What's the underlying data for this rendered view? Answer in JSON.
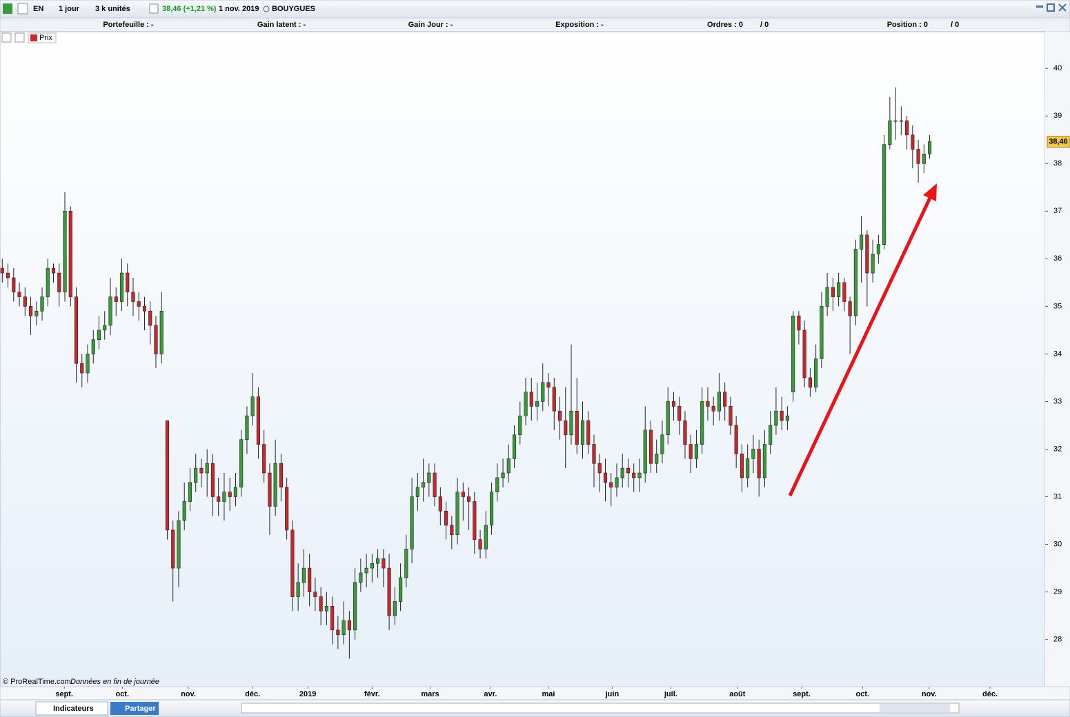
{
  "toolbar": {
    "language": "EN",
    "period": "1 jour",
    "units": "3 k unités",
    "quote": "38,46 (+1,21 %)",
    "date": "1 nov. 2019",
    "instrument": "BOUYGUES"
  },
  "info_bar": {
    "portfolio": "Portefeuille : -",
    "unrealized": "Gain latent : -",
    "day_gain": "Gain Jour : -",
    "exposure": "Exposition : -",
    "orders": "Ordres : 0",
    "orders_total": "/ 0",
    "position": "Position : 0",
    "position_total": "/ 0"
  },
  "footer": {
    "copyright": "© ProRealTime.com",
    "note": "Données en fin de journée"
  },
  "bottom_toolbar": {
    "indicators": "Indicateurs",
    "share": "Partager"
  },
  "chart_data": {
    "type": "candlestick",
    "categories": [
      null,
      null,
      null,
      null,
      null,
      null,
      null,
      null,
      null,
      null,
      null,
      null,
      null,
      null,
      null,
      null,
      null,
      null,
      null,
      null,
      null,
      null,
      null,
      null,
      null,
      null,
      null,
      null,
      null,
      null,
      null,
      null,
      null,
      null,
      null,
      null,
      null,
      null,
      null,
      null,
      null,
      null,
      null,
      null,
      null,
      null,
      null,
      null,
      null,
      null,
      null,
      null,
      null,
      null,
      null,
      null,
      null,
      null,
      null,
      null,
      null,
      null,
      null,
      null,
      null,
      null,
      null,
      null,
      null,
      null,
      null,
      null,
      null,
      null,
      null,
      null,
      null,
      null,
      null,
      null,
      null,
      null,
      null,
      null,
      null,
      null,
      null,
      null,
      null,
      null,
      null,
      null,
      null,
      null,
      null,
      null,
      null,
      null,
      null,
      null,
      null,
      null,
      null,
      null,
      null,
      null,
      null,
      null,
      null,
      null,
      null,
      null,
      null,
      null,
      null,
      null,
      null,
      null,
      null,
      null,
      null,
      null,
      null,
      null,
      null,
      null,
      null,
      null,
      null,
      null,
      null,
      null,
      null,
      null,
      null,
      null,
      null,
      null,
      null,
      null,
      null,
      null,
      null,
      null,
      null,
      null,
      null,
      null,
      null,
      null,
      null,
      null,
      null,
      null,
      null,
      null,
      null,
      null,
      null,
      null,
      null,
      null,
      null,
      null
    ],
    "series": [
      {
        "name": "Prix",
        "up_color": "#3a9a3a",
        "down_color": "#c8282c",
        "open": [
          35.8,
          35.7,
          35.6,
          35.3,
          35.2,
          35.0,
          34.8,
          34.9,
          35.2,
          35.8,
          35.7,
          35.3,
          37.0,
          35.2,
          33.8,
          33.6,
          34.0,
          34.3,
          34.5,
          34.6,
          35.2,
          35.1,
          35.7,
          35.3,
          35.1,
          35.0,
          34.9,
          34.6,
          34.0,
          32.6,
          30.3,
          29.5,
          30.5,
          30.9,
          31.3,
          31.6,
          31.5,
          31.7,
          31.0,
          30.9,
          31.1,
          31.0,
          31.2,
          32.2,
          32.7,
          33.1,
          32.1,
          31.5,
          30.8,
          31.7,
          31.2,
          30.3,
          28.9,
          29.2,
          29.5,
          29.0,
          28.9,
          28.6,
          28.7,
          28.2,
          28.1,
          28.4,
          28.2,
          29.2,
          29.4,
          29.5,
          29.6,
          29.7,
          29.5,
          28.5,
          28.8,
          29.3,
          29.9,
          31.0,
          31.2,
          31.3,
          31.5,
          31.0,
          30.7,
          30.4,
          30.2,
          31.1,
          31.0,
          30.9,
          30.1,
          29.9,
          30.4,
          31.1,
          31.4,
          31.5,
          31.8,
          32.3,
          32.7,
          33.2,
          32.9,
          33.0,
          33.4,
          33.3,
          32.8,
          32.6,
          32.3,
          32.8,
          32.1,
          32.6,
          32.1,
          31.7,
          31.5,
          31.3,
          31.2,
          31.4,
          31.6,
          31.5,
          31.4,
          31.5,
          32.4,
          31.7,
          31.9,
          32.3,
          33.0,
          32.9,
          32.6,
          32.1,
          31.8,
          32.1,
          33.0,
          32.9,
          32.8,
          33.2,
          32.9,
          32.5,
          31.9,
          31.4,
          31.8,
          32.0,
          31.4,
          32.1,
          32.5,
          32.8,
          32.6,
          33.2,
          34.8,
          34.5,
          33.5,
          33.3,
          33.9,
          35.0,
          35.4,
          35.2,
          35.5,
          35.1,
          34.8,
          36.2,
          36.5,
          35.7,
          36.1,
          36.3,
          38.4,
          38.9,
          38.9,
          38.9,
          38.6,
          38.3,
          38.0,
          38.2
        ],
        "high": [
          36.0,
          35.9,
          35.8,
          35.5,
          35.4,
          35.2,
          35.1,
          35.4,
          36.0,
          35.9,
          35.9,
          37.4,
          37.1,
          35.4,
          34.0,
          34.2,
          34.5,
          34.8,
          34.9,
          35.6,
          35.4,
          36.0,
          35.9,
          35.6,
          35.3,
          35.2,
          35.1,
          34.8,
          35.3,
          32.6,
          30.5,
          30.7,
          31.3,
          31.6,
          31.9,
          31.8,
          32.0,
          31.9,
          31.4,
          31.5,
          31.4,
          31.5,
          32.4,
          32.9,
          33.6,
          33.3,
          32.4,
          31.7,
          32.2,
          31.9,
          31.4,
          30.5,
          29.6,
          29.9,
          29.8,
          29.3,
          29.1,
          29.0,
          28.9,
          28.5,
          28.8,
          28.6,
          29.5,
          29.7,
          29.8,
          29.8,
          29.9,
          29.9,
          29.8,
          29.1,
          29.6,
          30.2,
          31.4,
          31.5,
          31.8,
          31.7,
          31.7,
          31.2,
          30.9,
          30.6,
          31.4,
          31.3,
          31.2,
          31.1,
          30.3,
          30.7,
          31.3,
          31.7,
          31.8,
          32.1,
          32.5,
          33.0,
          33.5,
          33.5,
          33.4,
          33.8,
          33.6,
          33.5,
          33.1,
          33.3,
          34.2,
          33.5,
          33.0,
          32.8,
          32.3,
          31.9,
          31.8,
          31.5,
          31.7,
          31.9,
          31.8,
          31.7,
          31.8,
          32.9,
          32.6,
          32.2,
          32.6,
          33.3,
          33.2,
          33.1,
          32.8,
          32.3,
          32.4,
          33.3,
          33.3,
          33.1,
          33.6,
          33.4,
          33.1,
          32.7,
          32.1,
          32.1,
          32.3,
          32.2,
          32.4,
          32.8,
          33.3,
          33.1,
          32.9,
          34.9,
          34.9,
          34.7,
          33.7,
          34.2,
          35.3,
          35.7,
          35.6,
          35.7,
          35.6,
          35.2,
          36.4,
          36.9,
          36.6,
          36.4,
          36.5,
          38.6,
          39.4,
          39.6,
          39.2,
          39.0,
          38.8,
          38.5,
          38.4,
          38.6
        ],
        "low": [
          35.5,
          35.4,
          35.1,
          35.0,
          34.8,
          34.4,
          34.6,
          34.7,
          35.0,
          35.5,
          35.0,
          35.1,
          35.0,
          33.4,
          33.3,
          33.4,
          33.8,
          34.1,
          34.3,
          34.4,
          34.8,
          34.9,
          35.0,
          34.8,
          34.7,
          34.5,
          34.2,
          33.7,
          33.8,
          30.1,
          28.8,
          29.1,
          30.3,
          30.7,
          31.1,
          31.2,
          31.0,
          30.6,
          30.6,
          30.5,
          30.7,
          30.8,
          31.0,
          31.9,
          32.5,
          31.8,
          31.3,
          30.2,
          30.6,
          30.9,
          30.1,
          28.6,
          28.6,
          28.9,
          28.7,
          28.6,
          28.3,
          28.3,
          27.9,
          27.8,
          27.9,
          27.6,
          28.0,
          29.0,
          29.1,
          29.2,
          29.3,
          29.1,
          28.2,
          28.3,
          28.6,
          29.1,
          29.6,
          30.7,
          30.9,
          31.0,
          30.8,
          30.4,
          30.1,
          29.9,
          30.0,
          30.5,
          30.3,
          29.8,
          29.7,
          29.7,
          30.2,
          30.9,
          31.2,
          31.3,
          31.6,
          32.1,
          32.5,
          32.6,
          32.6,
          32.8,
          32.9,
          32.4,
          32.2,
          31.6,
          32.1,
          31.9,
          31.8,
          31.9,
          31.2,
          31.1,
          30.9,
          30.8,
          31.0,
          31.2,
          31.2,
          31.1,
          31.1,
          31.3,
          31.5,
          31.5,
          31.7,
          32.1,
          32.6,
          32.3,
          31.8,
          31.5,
          31.6,
          31.9,
          32.6,
          32.5,
          32.6,
          32.6,
          32.3,
          31.6,
          31.1,
          31.2,
          31.5,
          31.0,
          31.2,
          31.9,
          32.3,
          32.4,
          32.4,
          33.0,
          34.2,
          33.3,
          33.1,
          33.2,
          33.7,
          34.8,
          34.9,
          35.0,
          34.9,
          34.0,
          34.6,
          35.5,
          35.0,
          35.5,
          35.9,
          36.2,
          38.3,
          38.5,
          38.6,
          38.3,
          37.9,
          37.6,
          37.8,
          38.1
        ],
        "close": [
          35.7,
          35.6,
          35.3,
          35.2,
          35.0,
          34.8,
          34.9,
          35.2,
          35.8,
          35.7,
          35.3,
          37.0,
          35.2,
          33.8,
          33.6,
          34.0,
          34.3,
          34.5,
          34.6,
          35.2,
          35.1,
          35.7,
          35.3,
          35.1,
          35.0,
          34.9,
          34.6,
          34.0,
          34.9,
          30.3,
          29.5,
          30.5,
          30.9,
          31.3,
          31.6,
          31.5,
          31.7,
          31.0,
          30.9,
          31.1,
          31.0,
          31.2,
          32.2,
          32.7,
          33.1,
          32.1,
          31.5,
          30.8,
          31.7,
          31.2,
          30.3,
          28.9,
          29.2,
          29.5,
          29.0,
          28.9,
          28.6,
          28.7,
          28.2,
          28.1,
          28.4,
          28.2,
          29.2,
          29.4,
          29.5,
          29.6,
          29.7,
          29.5,
          28.5,
          28.8,
          29.3,
          29.9,
          31.0,
          31.2,
          31.3,
          31.5,
          31.0,
          30.7,
          30.4,
          30.2,
          31.1,
          31.0,
          30.9,
          30.1,
          29.9,
          30.4,
          31.1,
          31.4,
          31.5,
          31.8,
          32.3,
          32.7,
          33.2,
          32.9,
          33.0,
          33.4,
          33.3,
          32.8,
          32.6,
          32.3,
          32.8,
          32.1,
          32.6,
          32.1,
          31.7,
          31.5,
          31.3,
          31.2,
          31.4,
          31.6,
          31.5,
          31.4,
          31.5,
          32.4,
          31.7,
          31.9,
          32.3,
          33.0,
          32.9,
          32.6,
          32.1,
          31.8,
          32.1,
          33.0,
          32.9,
          32.8,
          33.2,
          32.9,
          32.5,
          31.9,
          31.4,
          31.8,
          32.0,
          31.4,
          32.1,
          32.5,
          32.8,
          32.6,
          32.7,
          34.8,
          34.5,
          33.5,
          33.3,
          33.9,
          35.0,
          35.4,
          35.2,
          35.5,
          35.1,
          34.8,
          36.2,
          36.5,
          35.7,
          36.1,
          36.3,
          38.4,
          38.9,
          38.9,
          38.9,
          38.6,
          38.3,
          38.0,
          38.2,
          38.46
        ]
      }
    ],
    "last_price": {
      "value": 38.46,
      "label": "38,46"
    },
    "xlim": [
      -0.4,
      183.3
    ],
    "xticks": [
      {
        "value": 10.9,
        "label": "sept."
      },
      {
        "value": 21.1,
        "label": "oct."
      },
      {
        "value": 32.7,
        "label": "nov."
      },
      {
        "value": 44,
        "label": "déc."
      },
      {
        "value": 53.7,
        "label": "2019"
      },
      {
        "value": 65,
        "label": "févr."
      },
      {
        "value": 75.2,
        "label": "mars"
      },
      {
        "value": 85.8,
        "label": "avr."
      },
      {
        "value": 96,
        "label": "mai"
      },
      {
        "value": 107.2,
        "label": "juin"
      },
      {
        "value": 117.5,
        "label": "juil."
      },
      {
        "value": 129.2,
        "label": "août"
      },
      {
        "value": 140.5,
        "label": "sept."
      },
      {
        "value": 151.2,
        "label": "oct."
      },
      {
        "value": 162.9,
        "label": "nov."
      },
      {
        "value": 173.6,
        "label": "déc."
      }
    ],
    "ylim": [
      27.01,
      40.77
    ],
    "yticks": [
      28,
      29,
      30,
      31,
      32,
      33,
      34,
      35,
      36,
      37,
      38,
      39,
      40
    ],
    "grid": false
  }
}
